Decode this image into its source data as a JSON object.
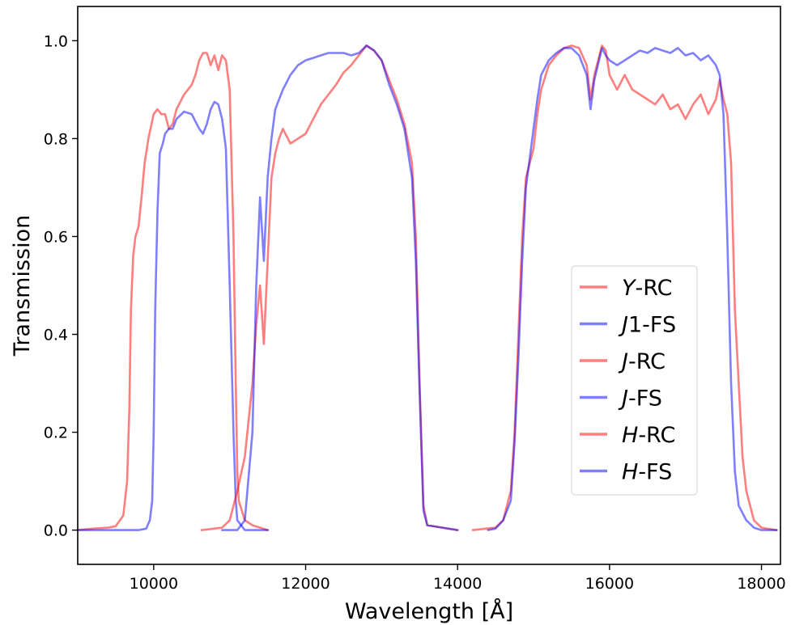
{
  "chart_data": {
    "type": "line",
    "xlabel": "Wavelength [Å]",
    "ylabel": "Transmission",
    "xlim": [
      9000,
      18250
    ],
    "ylim": [
      -0.07,
      1.07
    ],
    "xticks": [
      "10000",
      "12000",
      "14000",
      "16000",
      "18000"
    ],
    "yticks": [
      "0.0",
      "0.2",
      "0.4",
      "0.6",
      "0.8",
      "1.0"
    ],
    "grid": false,
    "legend_position": "center-right",
    "series": [
      {
        "name_italic": "Y",
        "name_rest": "-RC",
        "color": "#ff0000",
        "points": [
          [
            9000,
            0.0
          ],
          [
            9200,
            0.003
          ],
          [
            9400,
            0.005
          ],
          [
            9500,
            0.008
          ],
          [
            9600,
            0.03
          ],
          [
            9650,
            0.1
          ],
          [
            9680,
            0.25
          ],
          [
            9700,
            0.45
          ],
          [
            9730,
            0.56
          ],
          [
            9760,
            0.6
          ],
          [
            9800,
            0.62
          ],
          [
            9840,
            0.68
          ],
          [
            9880,
            0.75
          ],
          [
            9930,
            0.8
          ],
          [
            10000,
            0.85
          ],
          [
            10050,
            0.86
          ],
          [
            10100,
            0.85
          ],
          [
            10150,
            0.85
          ],
          [
            10200,
            0.82
          ],
          [
            10250,
            0.83
          ],
          [
            10300,
            0.86
          ],
          [
            10400,
            0.89
          ],
          [
            10500,
            0.91
          ],
          [
            10550,
            0.93
          ],
          [
            10600,
            0.96
          ],
          [
            10650,
            0.975
          ],
          [
            10700,
            0.975
          ],
          [
            10750,
            0.95
          ],
          [
            10800,
            0.97
          ],
          [
            10850,
            0.94
          ],
          [
            10900,
            0.97
          ],
          [
            10950,
            0.96
          ],
          [
            11000,
            0.9
          ],
          [
            11050,
            0.6
          ],
          [
            11080,
            0.3
          ],
          [
            11100,
            0.12
          ],
          [
            11120,
            0.06
          ],
          [
            11200,
            0.02
          ],
          [
            11300,
            0.01
          ],
          [
            11500,
            0.0
          ]
        ]
      },
      {
        "name_italic": "J",
        "name_rest": "1-FS",
        "color": "#0000ff",
        "points": [
          [
            9000,
            0.0
          ],
          [
            9800,
            0.0
          ],
          [
            9900,
            0.003
          ],
          [
            9950,
            0.02
          ],
          [
            9980,
            0.06
          ],
          [
            10000,
            0.2
          ],
          [
            10020,
            0.45
          ],
          [
            10050,
            0.65
          ],
          [
            10080,
            0.77
          ],
          [
            10120,
            0.79
          ],
          [
            10150,
            0.81
          ],
          [
            10200,
            0.82
          ],
          [
            10250,
            0.82
          ],
          [
            10300,
            0.84
          ],
          [
            10400,
            0.855
          ],
          [
            10500,
            0.85
          ],
          [
            10550,
            0.835
          ],
          [
            10600,
            0.82
          ],
          [
            10650,
            0.81
          ],
          [
            10700,
            0.83
          ],
          [
            10750,
            0.86
          ],
          [
            10800,
            0.875
          ],
          [
            10850,
            0.87
          ],
          [
            10900,
            0.84
          ],
          [
            10950,
            0.78
          ],
          [
            11000,
            0.5
          ],
          [
            11050,
            0.2
          ],
          [
            11080,
            0.06
          ],
          [
            11100,
            0.02
          ],
          [
            11200,
            0.0
          ],
          [
            11500,
            0.0
          ]
        ]
      },
      {
        "name_italic": "J",
        "name_rest": "-RC",
        "color": "#ff0000",
        "points": [
          [
            10630,
            0.0
          ],
          [
            10900,
            0.005
          ],
          [
            11000,
            0.02
          ],
          [
            11100,
            0.08
          ],
          [
            11200,
            0.15
          ],
          [
            11300,
            0.3
          ],
          [
            11350,
            0.42
          ],
          [
            11400,
            0.5
          ],
          [
            11450,
            0.38
          ],
          [
            11500,
            0.55
          ],
          [
            11550,
            0.72
          ],
          [
            11600,
            0.77
          ],
          [
            11650,
            0.8
          ],
          [
            11700,
            0.82
          ],
          [
            11800,
            0.79
          ],
          [
            11900,
            0.8
          ],
          [
            12000,
            0.81
          ],
          [
            12100,
            0.84
          ],
          [
            12200,
            0.87
          ],
          [
            12300,
            0.89
          ],
          [
            12400,
            0.91
          ],
          [
            12500,
            0.935
          ],
          [
            12600,
            0.95
          ],
          [
            12700,
            0.97
          ],
          [
            12800,
            0.99
          ],
          [
            12900,
            0.98
          ],
          [
            13000,
            0.96
          ],
          [
            13100,
            0.92
          ],
          [
            13200,
            0.88
          ],
          [
            13300,
            0.83
          ],
          [
            13400,
            0.75
          ],
          [
            13450,
            0.6
          ],
          [
            13500,
            0.3
          ],
          [
            13550,
            0.05
          ],
          [
            13600,
            0.01
          ],
          [
            13800,
            0.005
          ],
          [
            14000,
            0.0
          ]
        ]
      },
      {
        "name_italic": "J",
        "name_rest": "-FS",
        "color": "#0000ff",
        "points": [
          [
            10900,
            0.0
          ],
          [
            11100,
            0.0
          ],
          [
            11200,
            0.02
          ],
          [
            11300,
            0.2
          ],
          [
            11350,
            0.5
          ],
          [
            11400,
            0.68
          ],
          [
            11450,
            0.55
          ],
          [
            11500,
            0.72
          ],
          [
            11550,
            0.8
          ],
          [
            11600,
            0.86
          ],
          [
            11700,
            0.9
          ],
          [
            11800,
            0.93
          ],
          [
            11900,
            0.95
          ],
          [
            12000,
            0.96
          ],
          [
            12100,
            0.965
          ],
          [
            12200,
            0.97
          ],
          [
            12300,
            0.975
          ],
          [
            12400,
            0.975
          ],
          [
            12500,
            0.975
          ],
          [
            12600,
            0.97
          ],
          [
            12700,
            0.975
          ],
          [
            12800,
            0.99
          ],
          [
            12900,
            0.98
          ],
          [
            13000,
            0.96
          ],
          [
            13100,
            0.91
          ],
          [
            13200,
            0.87
          ],
          [
            13300,
            0.82
          ],
          [
            13400,
            0.72
          ],
          [
            13450,
            0.55
          ],
          [
            13500,
            0.28
          ],
          [
            13550,
            0.04
          ],
          [
            13600,
            0.01
          ],
          [
            13800,
            0.005
          ],
          [
            14000,
            0.0
          ]
        ]
      },
      {
        "name_italic": "H",
        "name_rest": "-RC",
        "color": "#ff0000",
        "points": [
          [
            14200,
            0.0
          ],
          [
            14500,
            0.005
          ],
          [
            14600,
            0.02
          ],
          [
            14700,
            0.08
          ],
          [
            14750,
            0.2
          ],
          [
            14800,
            0.4
          ],
          [
            14850,
            0.6
          ],
          [
            14900,
            0.72
          ],
          [
            15000,
            0.78
          ],
          [
            15050,
            0.85
          ],
          [
            15100,
            0.9
          ],
          [
            15200,
            0.95
          ],
          [
            15300,
            0.97
          ],
          [
            15400,
            0.985
          ],
          [
            15500,
            0.99
          ],
          [
            15600,
            0.985
          ],
          [
            15700,
            0.95
          ],
          [
            15750,
            0.88
          ],
          [
            15800,
            0.93
          ],
          [
            15900,
            0.99
          ],
          [
            15950,
            0.98
          ],
          [
            16000,
            0.93
          ],
          [
            16100,
            0.9
          ],
          [
            16200,
            0.93
          ],
          [
            16300,
            0.9
          ],
          [
            16400,
            0.89
          ],
          [
            16500,
            0.88
          ],
          [
            16600,
            0.87
          ],
          [
            16700,
            0.89
          ],
          [
            16800,
            0.86
          ],
          [
            16900,
            0.87
          ],
          [
            17000,
            0.84
          ],
          [
            17100,
            0.87
          ],
          [
            17200,
            0.89
          ],
          [
            17300,
            0.85
          ],
          [
            17400,
            0.88
          ],
          [
            17450,
            0.92
          ],
          [
            17500,
            0.88
          ],
          [
            17550,
            0.85
          ],
          [
            17600,
            0.75
          ],
          [
            17650,
            0.45
          ],
          [
            17700,
            0.3
          ],
          [
            17750,
            0.15
          ],
          [
            17800,
            0.08
          ],
          [
            17900,
            0.02
          ],
          [
            18000,
            0.005
          ],
          [
            18200,
            0.0
          ]
        ]
      },
      {
        "name_italic": "H",
        "name_rest": "-FS",
        "color": "#0000ff",
        "points": [
          [
            14400,
            0.0
          ],
          [
            14500,
            0.003
          ],
          [
            14600,
            0.02
          ],
          [
            14700,
            0.06
          ],
          [
            14750,
            0.18
          ],
          [
            14800,
            0.35
          ],
          [
            14850,
            0.55
          ],
          [
            14900,
            0.7
          ],
          [
            15000,
            0.82
          ],
          [
            15050,
            0.88
          ],
          [
            15100,
            0.93
          ],
          [
            15200,
            0.96
          ],
          [
            15300,
            0.975
          ],
          [
            15400,
            0.985
          ],
          [
            15500,
            0.985
          ],
          [
            15600,
            0.97
          ],
          [
            15700,
            0.93
          ],
          [
            15750,
            0.86
          ],
          [
            15800,
            0.92
          ],
          [
            15900,
            0.985
          ],
          [
            15950,
            0.97
          ],
          [
            16000,
            0.96
          ],
          [
            16100,
            0.95
          ],
          [
            16200,
            0.96
          ],
          [
            16300,
            0.97
          ],
          [
            16400,
            0.98
          ],
          [
            16500,
            0.975
          ],
          [
            16600,
            0.985
          ],
          [
            16700,
            0.98
          ],
          [
            16800,
            0.975
          ],
          [
            16900,
            0.985
          ],
          [
            17000,
            0.97
          ],
          [
            17100,
            0.975
          ],
          [
            17200,
            0.96
          ],
          [
            17300,
            0.97
          ],
          [
            17400,
            0.95
          ],
          [
            17450,
            0.93
          ],
          [
            17500,
            0.85
          ],
          [
            17550,
            0.6
          ],
          [
            17600,
            0.3
          ],
          [
            17650,
            0.12
          ],
          [
            17700,
            0.05
          ],
          [
            17800,
            0.02
          ],
          [
            17900,
            0.005
          ],
          [
            18000,
            0.0
          ],
          [
            18200,
            0.0
          ]
        ]
      }
    ]
  }
}
